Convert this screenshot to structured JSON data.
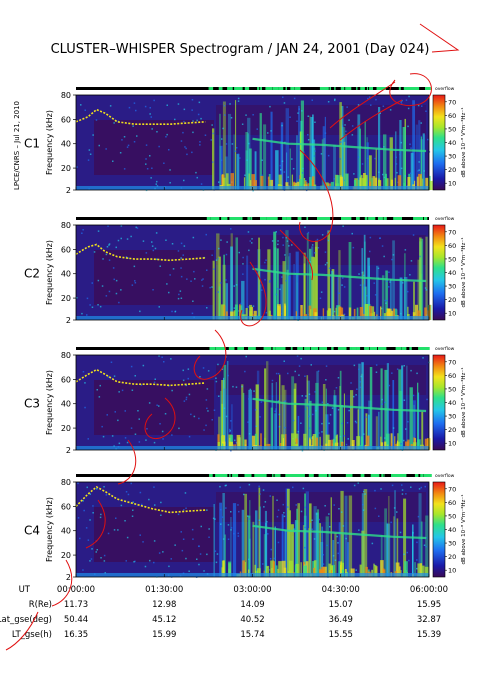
{
  "title": "CLUSTER–WHISPER Spectrogram / JAN 24, 2001 (Day 024)",
  "credit": "LPCE/CNRS – Jul 21, 2010",
  "chart_data": {
    "type": "heatmap",
    "panels": [
      {
        "name": "C1",
        "color": "#000000",
        "ylabel": "Frequency (kHz)",
        "yticks": [
          "2",
          "20",
          "40",
          "60",
          "80"
        ],
        "ylim": [
          2,
          80
        ],
        "colorbar_label": "dB above 10⁻⁸ V²m⁻²Hz⁻¹",
        "colorbar_ticks": [
          "10",
          "20",
          "30",
          "40",
          "50",
          "60",
          "70"
        ],
        "mode_label": "overflow"
      },
      {
        "name": "C2",
        "color": "#000000",
        "ylabel": "Frequency (kHz)",
        "yticks": [
          "2",
          "20",
          "40",
          "60",
          "80"
        ],
        "ylim": [
          2,
          80
        ],
        "colorbar_label": "dB above 10⁻⁸ V²m⁻²Hz⁻¹",
        "colorbar_ticks": [
          "10",
          "20",
          "30",
          "40",
          "50",
          "60",
          "70"
        ],
        "mode_label": "overflow"
      },
      {
        "name": "C3",
        "color": "#2ecc40",
        "ylabel": "Frequency (kHz)",
        "yticks": [
          "2",
          "20",
          "40",
          "60",
          "80"
        ],
        "ylim": [
          2,
          80
        ],
        "colorbar_label": "dB above 10⁻⁸ V²m⁻²Hz⁻¹",
        "colorbar_ticks": [
          "10",
          "20",
          "30",
          "40",
          "50",
          "60",
          "70"
        ],
        "mode_label": "overflow"
      },
      {
        "name": "C4",
        "color": "#000000",
        "ylabel": "Frequency (kHz)",
        "yticks": [
          "2",
          "20",
          "40",
          "60",
          "80"
        ],
        "ylim": [
          2,
          80
        ],
        "colorbar_label": "dB above 10⁻⁸ V²m⁻²Hz⁻¹",
        "colorbar_ticks": [
          "10",
          "20",
          "30",
          "40",
          "50",
          "60",
          "70"
        ],
        "mode_label": "overflow"
      }
    ],
    "colorbar_range": [
      5,
      75
    ],
    "colormap": [
      "#3a0a55",
      "#1a1aa8",
      "#1e6ef0",
      "#24c6e8",
      "#2ee08a",
      "#a6e62c",
      "#f2e21c",
      "#f28a12",
      "#e81818"
    ],
    "x_ticks": [
      "00:00:00",
      "01:30:00",
      "03:00:00",
      "04:30:00",
      "06:00:00"
    ],
    "x_hours": [
      0,
      1.5,
      3.0,
      4.5,
      6.0
    ],
    "xlim_hours": [
      0,
      6
    ],
    "line_trace": {
      "hours": [
        0.0,
        0.2,
        0.35,
        0.5,
        0.7,
        1.0,
        1.3,
        1.6,
        1.9,
        2.2
      ],
      "khz_by_panel": [
        [
          58,
          62,
          68,
          65,
          58,
          56,
          56,
          56,
          57,
          58
        ],
        [
          56,
          62,
          64,
          58,
          54,
          52,
          52,
          51,
          52,
          53
        ],
        [
          58,
          64,
          68,
          64,
          58,
          56,
          56,
          55,
          56,
          57
        ],
        [
          60,
          70,
          76,
          72,
          66,
          62,
          58,
          55,
          56,
          57
        ]
      ]
    },
    "ephemeris": {
      "rows": [
        {
          "label": "UT",
          "values": [
            "00:00:00",
            "01:30:00",
            "03:00:00",
            "04:30:00",
            "06:00:00"
          ]
        },
        {
          "label": "R(Re)",
          "values": [
            "11.73",
            "12.98",
            "14.09",
            "15.07",
            "15.95"
          ]
        },
        {
          "label": "Lat_gse(deg)",
          "values": [
            "50.44",
            "45.12",
            "40.52",
            "36.49",
            "32.87"
          ]
        },
        {
          "label": "LT_gse(h)",
          "values": [
            "16.35",
            "15.99",
            "15.74",
            "15.55",
            "15.39"
          ]
        }
      ]
    }
  }
}
